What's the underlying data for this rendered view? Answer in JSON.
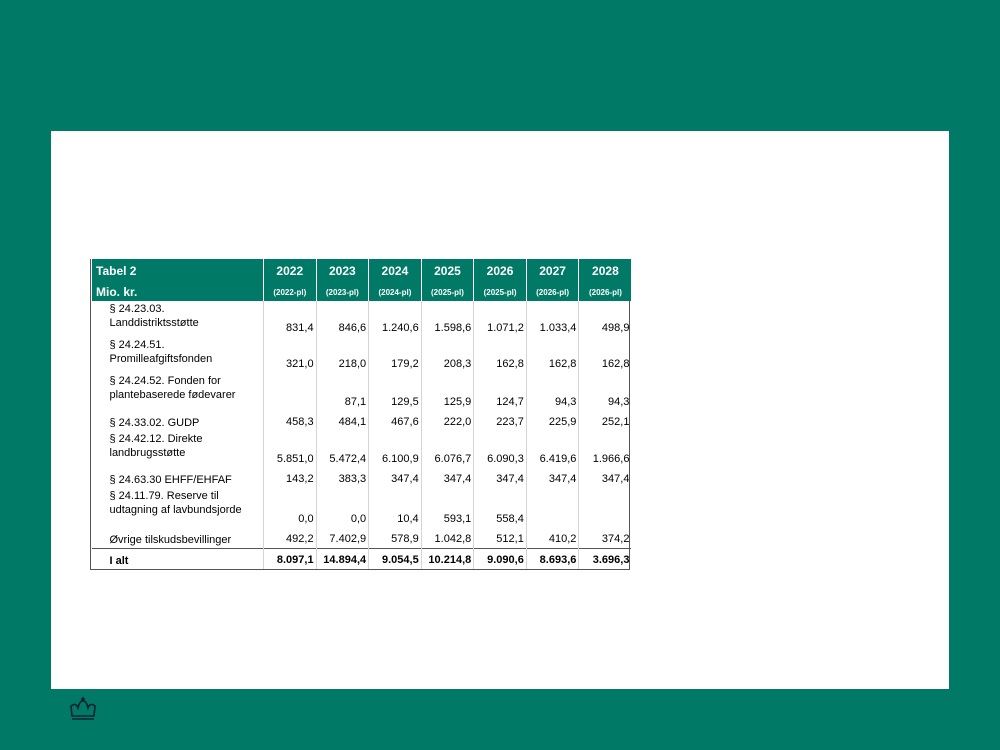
{
  "table": {
    "title": "Tabel 2",
    "unit_label": "Mio. kr.",
    "years": [
      {
        "year": "2022",
        "pl": "(2022-pl)"
      },
      {
        "year": "2023",
        "pl": "(2023-pl)"
      },
      {
        "year": "2024",
        "pl": "(2024-pl)"
      },
      {
        "year": "2025",
        "pl": "(2025-pl)"
      },
      {
        "year": "2026",
        "pl": "(2025-pl)"
      },
      {
        "year": "2027",
        "pl": "(2026-pl)"
      },
      {
        "year": "2028",
        "pl": "(2026-pl)"
      }
    ],
    "rows": [
      {
        "label_l1": "§ 24.23.03.",
        "label_l2": "Landdistriktsstøtte",
        "values": [
          "831,4",
          "846,6",
          "1.240,6",
          "1.598,6",
          "1.071,2",
          "1.033,4",
          "498,9"
        ]
      },
      {
        "label_l1": "§ 24.24.51.",
        "label_l2": "Promilleafgiftsfonden",
        "values": [
          "321,0",
          "218,0",
          "179,2",
          "208,3",
          "162,8",
          "162,8",
          "162,8"
        ]
      },
      {
        "label_l1": "§ 24.24.52. Fonden for",
        "label_l2": "plantebaserede fødevarer",
        "values": [
          "",
          "87,1",
          "129,5",
          "125,9",
          "124,7",
          "94,3",
          "94,3"
        ]
      },
      {
        "label_l1": "§ 24.33.02. GUDP",
        "label_l2": "",
        "values": [
          "458,3",
          "484,1",
          "467,6",
          "222,0",
          "223,7",
          "225,9",
          "252,1"
        ]
      },
      {
        "label_l1": "§ 24.42.12. Direkte",
        "label_l2": "landbrugsstøtte",
        "values": [
          "5.851,0",
          "5.472,4",
          "6.100,9",
          "6.076,7",
          "6.090,3",
          "6.419,6",
          "1.966,6"
        ]
      },
      {
        "label_l1": "§ 24.63.30 EHFF/EHFAF",
        "label_l2": "",
        "values": [
          "143,2",
          "383,3",
          "347,4",
          "347,4",
          "347,4",
          "347,4",
          "347,4"
        ]
      },
      {
        "label_l1": "§ 24.11.79. Reserve til",
        "label_l2": "udtagning af lavbundsjorde",
        "values": [
          "0,0",
          "0,0",
          "10,4",
          "593,1",
          "558,4",
          "",
          ""
        ]
      },
      {
        "label_l1": "Øvrige tilskudsbevillinger",
        "label_l2": "",
        "values": [
          "492,2",
          "7.402,9",
          "578,9",
          "1.042,8",
          "512,1",
          "410,2",
          "374,2"
        ]
      }
    ],
    "total": {
      "label": "I alt",
      "values": [
        "8.097,1",
        "14.894,4",
        "9.054,5",
        "10.214,8",
        "9.090,6",
        "8.693,6",
        "3.696,3"
      ]
    }
  },
  "logo": {
    "icon": "crown-icon"
  }
}
